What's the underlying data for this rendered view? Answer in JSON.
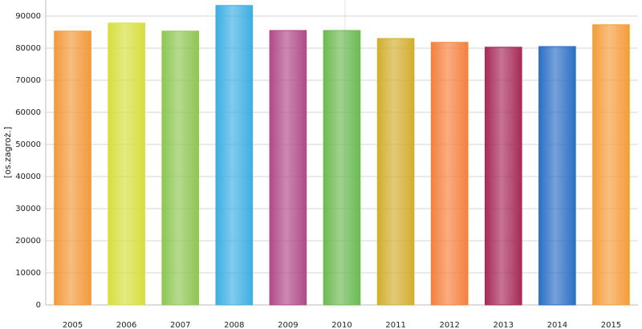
{
  "chart_data": {
    "type": "bar",
    "y_label": "[os.zagroż.]",
    "categories": [
      "2005",
      "2006",
      "2007",
      "2008",
      "2009",
      "2010",
      "2011",
      "2012",
      "2013",
      "2014",
      "2015"
    ],
    "values": [
      85300,
      87800,
      85300,
      93300,
      85500,
      85500,
      83000,
      81800,
      80300,
      80500,
      87300
    ],
    "colors": [
      "#f3993a",
      "#d6df3c",
      "#8ec653",
      "#3cafe2",
      "#b04a88",
      "#6cba52",
      "#d2ae2e",
      "#f5803e",
      "#a72a58",
      "#2b6fc6",
      "#f59c3a"
    ],
    "ylim": [
      0,
      95000
    ],
    "yticks": [
      0,
      10000,
      20000,
      30000,
      40000,
      50000,
      60000,
      70000,
      80000,
      90000
    ],
    "grid": true
  }
}
